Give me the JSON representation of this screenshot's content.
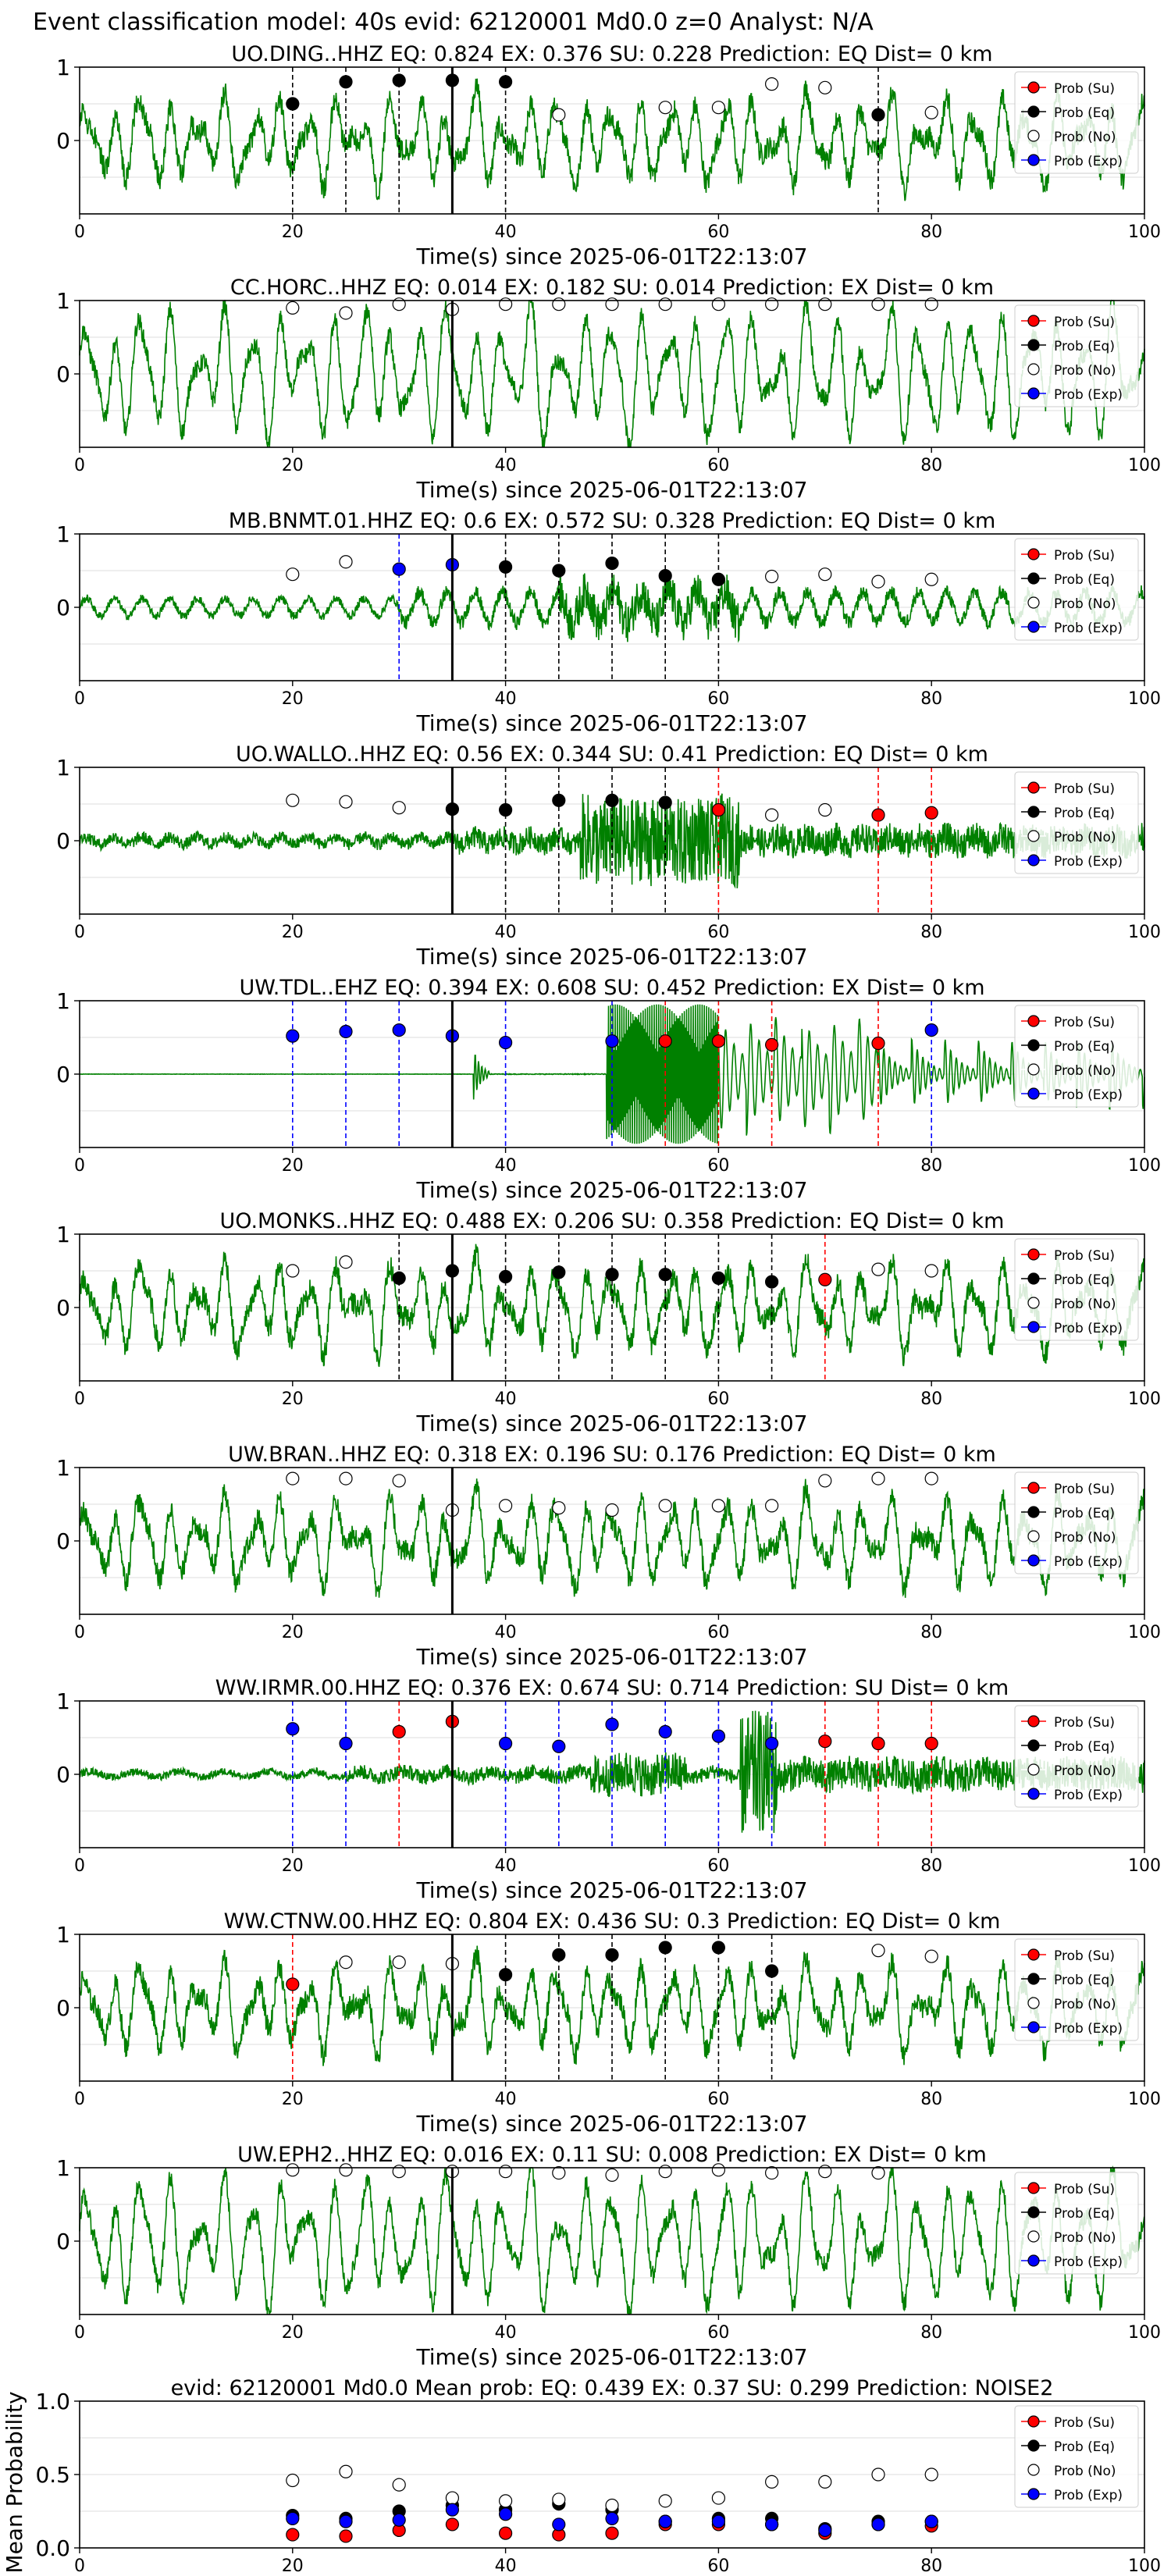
{
  "figure_title": "Event classification model: 40s evid: 62120001 Md0.0 z=0 Analyst: N/A",
  "legend_labels": [
    "Prob (Su)",
    "Prob (Eq)",
    "Prob (No)",
    "Prob (Exp)"
  ],
  "colors": {
    "trace": "#008000",
    "su": "#ff0000",
    "eq": "#000000",
    "no": "#ffffff",
    "ex": "#0000ff",
    "event_line": "#000000"
  },
  "chart_data": [
    {
      "type": "line",
      "title": "UO.DING..HHZ   EQ: 0.824  EX: 0.376  SU: 0.228   Prediction: EQ    Dist= 0 km",
      "xlabel": "Time(s) since 2025-06-01T22:13:07",
      "xlim": [
        0,
        100
      ],
      "ylim": [
        -1,
        1
      ],
      "xticks": [
        "0",
        "20",
        "40",
        "60",
        "80",
        "100"
      ],
      "yticks": [
        "1",
        "0"
      ],
      "event_line_x": 35,
      "trace_style": "mid",
      "windows": [
        {
          "x": 20,
          "class": "eq",
          "p": 0.5
        },
        {
          "x": 25,
          "class": "eq",
          "p": 0.8
        },
        {
          "x": 30,
          "class": "eq",
          "p": 0.82
        },
        {
          "x": 35,
          "class": "eq",
          "p": 0.82
        },
        {
          "x": 40,
          "class": "eq",
          "p": 0.8
        },
        {
          "x": 45,
          "class": "no",
          "p": 0.35
        },
        {
          "x": 55,
          "class": "no",
          "p": 0.45
        },
        {
          "x": 60,
          "class": "no",
          "p": 0.45
        },
        {
          "x": 65,
          "class": "no",
          "p": 0.77
        },
        {
          "x": 70,
          "class": "no",
          "p": 0.72
        },
        {
          "x": 75,
          "class": "eq",
          "p": 0.35
        },
        {
          "x": 80,
          "class": "no",
          "p": 0.38
        }
      ]
    },
    {
      "type": "line",
      "title": "CC.HORC..HHZ   EQ: 0.014  EX: 0.182  SU: 0.014   Prediction: EX    Dist= 0 km",
      "xlabel": "Time(s) since 2025-06-01T22:13:07",
      "xlim": [
        0,
        100
      ],
      "ylim": [
        -1,
        1
      ],
      "xticks": [
        "0",
        "20",
        "40",
        "60",
        "80",
        "100"
      ],
      "yticks": [
        "1",
        "0"
      ],
      "event_line_x": 35,
      "trace_style": "full",
      "windows": [
        {
          "x": 20,
          "class": "no",
          "p": 0.9
        },
        {
          "x": 25,
          "class": "no",
          "p": 0.83
        },
        {
          "x": 30,
          "class": "no",
          "p": 0.95
        },
        {
          "x": 35,
          "class": "no",
          "p": 0.88
        },
        {
          "x": 40,
          "class": "no",
          "p": 0.95
        },
        {
          "x": 45,
          "class": "no",
          "p": 0.95
        },
        {
          "x": 50,
          "class": "no",
          "p": 0.95
        },
        {
          "x": 55,
          "class": "no",
          "p": 0.95
        },
        {
          "x": 60,
          "class": "no",
          "p": 0.95
        },
        {
          "x": 65,
          "class": "no",
          "p": 0.95
        },
        {
          "x": 70,
          "class": "no",
          "p": 0.95
        },
        {
          "x": 75,
          "class": "no",
          "p": 0.95
        },
        {
          "x": 80,
          "class": "no",
          "p": 0.95
        }
      ]
    },
    {
      "type": "line",
      "title": "MB.BNMT.01.HHZ   EQ: 0.6  EX: 0.572  SU: 0.328   Prediction: EQ    Dist= 0 km",
      "xlabel": "Time(s) since 2025-06-01T22:13:07",
      "xlim": [
        0,
        100
      ],
      "ylim": [
        -1,
        1
      ],
      "xticks": [
        "0",
        "20",
        "40",
        "60",
        "80",
        "100"
      ],
      "yticks": [
        "1",
        "0"
      ],
      "event_line_x": 35,
      "trace_style": "low",
      "windows": [
        {
          "x": 20,
          "class": "no",
          "p": 0.45
        },
        {
          "x": 25,
          "class": "no",
          "p": 0.62
        },
        {
          "x": 30,
          "class": "ex",
          "p": 0.52
        },
        {
          "x": 35,
          "class": "ex",
          "p": 0.58
        },
        {
          "x": 40,
          "class": "eq",
          "p": 0.55
        },
        {
          "x": 45,
          "class": "eq",
          "p": 0.5
        },
        {
          "x": 50,
          "class": "eq",
          "p": 0.6
        },
        {
          "x": 55,
          "class": "eq",
          "p": 0.43
        },
        {
          "x": 60,
          "class": "eq",
          "p": 0.38
        },
        {
          "x": 65,
          "class": "no",
          "p": 0.42
        },
        {
          "x": 70,
          "class": "no",
          "p": 0.45
        },
        {
          "x": 75,
          "class": "no",
          "p": 0.35
        },
        {
          "x": 80,
          "class": "no",
          "p": 0.38
        }
      ]
    },
    {
      "type": "line",
      "title": "UO.WALLO..HHZ   EQ: 0.56  EX: 0.344  SU: 0.41   Prediction: EQ    Dist= 0 km",
      "xlabel": "Time(s) since 2025-06-01T22:13:07",
      "xlim": [
        0,
        100
      ],
      "ylim": [
        -1,
        1
      ],
      "xticks": [
        "0",
        "20",
        "40",
        "60",
        "80",
        "100"
      ],
      "yticks": [
        "1",
        "0"
      ],
      "event_line_x": 35,
      "trace_style": "burst",
      "windows": [
        {
          "x": 20,
          "class": "no",
          "p": 0.55
        },
        {
          "x": 25,
          "class": "no",
          "p": 0.53
        },
        {
          "x": 30,
          "class": "no",
          "p": 0.45
        },
        {
          "x": 35,
          "class": "eq",
          "p": 0.43
        },
        {
          "x": 40,
          "class": "eq",
          "p": 0.42
        },
        {
          "x": 45,
          "class": "eq",
          "p": 0.55
        },
        {
          "x": 50,
          "class": "eq",
          "p": 0.55
        },
        {
          "x": 55,
          "class": "eq",
          "p": 0.52
        },
        {
          "x": 60,
          "class": "su",
          "p": 0.42
        },
        {
          "x": 65,
          "class": "no",
          "p": 0.35
        },
        {
          "x": 70,
          "class": "no",
          "p": 0.42
        },
        {
          "x": 75,
          "class": "su",
          "p": 0.35
        },
        {
          "x": 80,
          "class": "su",
          "p": 0.38
        }
      ]
    },
    {
      "type": "line",
      "title": "UW.TDL..EHZ   EQ: 0.394  EX: 0.608  SU: 0.452   Prediction: EX    Dist= 0 km",
      "xlabel": "Time(s) since 2025-06-01T22:13:07",
      "xlim": [
        0,
        100
      ],
      "ylim": [
        -1,
        1
      ],
      "xticks": [
        "0",
        "20",
        "40",
        "60",
        "80",
        "100"
      ],
      "yticks": [
        "1",
        "0"
      ],
      "event_line_x": 35,
      "trace_style": "tdl",
      "windows": [
        {
          "x": 20,
          "class": "ex",
          "p": 0.52
        },
        {
          "x": 25,
          "class": "ex",
          "p": 0.58
        },
        {
          "x": 30,
          "class": "ex",
          "p": 0.6
        },
        {
          "x": 35,
          "class": "ex",
          "p": 0.52
        },
        {
          "x": 40,
          "class": "ex",
          "p": 0.43
        },
        {
          "x": 50,
          "class": "ex",
          "p": 0.45
        },
        {
          "x": 55,
          "class": "su",
          "p": 0.45
        },
        {
          "x": 60,
          "class": "su",
          "p": 0.45
        },
        {
          "x": 65,
          "class": "su",
          "p": 0.4
        },
        {
          "x": 75,
          "class": "su",
          "p": 0.42
        },
        {
          "x": 80,
          "class": "ex",
          "p": 0.6
        }
      ]
    },
    {
      "type": "line",
      "title": "UO.MONKS..HHZ   EQ: 0.488  EX: 0.206  SU: 0.358   Prediction: EQ    Dist= 0 km",
      "xlabel": "Time(s) since 2025-06-01T22:13:07",
      "xlim": [
        0,
        100
      ],
      "ylim": [
        -1,
        1
      ],
      "xticks": [
        "0",
        "20",
        "40",
        "60",
        "80",
        "100"
      ],
      "yticks": [
        "1",
        "0"
      ],
      "event_line_x": 35,
      "trace_style": "mid",
      "windows": [
        {
          "x": 20,
          "class": "no",
          "p": 0.5
        },
        {
          "x": 25,
          "class": "no",
          "p": 0.62
        },
        {
          "x": 30,
          "class": "eq",
          "p": 0.4
        },
        {
          "x": 35,
          "class": "eq",
          "p": 0.5
        },
        {
          "x": 40,
          "class": "eq",
          "p": 0.42
        },
        {
          "x": 45,
          "class": "eq",
          "p": 0.48
        },
        {
          "x": 50,
          "class": "eq",
          "p": 0.45
        },
        {
          "x": 55,
          "class": "eq",
          "p": 0.45
        },
        {
          "x": 60,
          "class": "eq",
          "p": 0.4
        },
        {
          "x": 65,
          "class": "eq",
          "p": 0.35
        },
        {
          "x": 70,
          "class": "su",
          "p": 0.38
        },
        {
          "x": 75,
          "class": "no",
          "p": 0.52
        },
        {
          "x": 80,
          "class": "no",
          "p": 0.5
        }
      ]
    },
    {
      "type": "line",
      "title": "UW.BRAN..HHZ   EQ: 0.318  EX: 0.196  SU: 0.176   Prediction: EQ    Dist= 0 km",
      "xlabel": "Time(s) since 2025-06-01T22:13:07",
      "xlim": [
        0,
        100
      ],
      "ylim": [
        -1,
        1
      ],
      "xticks": [
        "0",
        "20",
        "40",
        "60",
        "80",
        "100"
      ],
      "yticks": [
        "1",
        "0"
      ],
      "event_line_x": 35,
      "trace_style": "mid",
      "windows": [
        {
          "x": 20,
          "class": "no",
          "p": 0.85
        },
        {
          "x": 25,
          "class": "no",
          "p": 0.85
        },
        {
          "x": 30,
          "class": "no",
          "p": 0.82
        },
        {
          "x": 35,
          "class": "no",
          "p": 0.42
        },
        {
          "x": 40,
          "class": "no",
          "p": 0.48
        },
        {
          "x": 45,
          "class": "no",
          "p": 0.45
        },
        {
          "x": 50,
          "class": "no",
          "p": 0.42
        },
        {
          "x": 55,
          "class": "no",
          "p": 0.48
        },
        {
          "x": 60,
          "class": "no",
          "p": 0.48
        },
        {
          "x": 65,
          "class": "no",
          "p": 0.48
        },
        {
          "x": 70,
          "class": "no",
          "p": 0.82
        },
        {
          "x": 75,
          "class": "no",
          "p": 0.85
        },
        {
          "x": 80,
          "class": "no",
          "p": 0.85
        }
      ]
    },
    {
      "type": "line",
      "title": "WW.IRMR.00.HHZ   EQ: 0.376  EX: 0.674  SU: 0.714   Prediction: SU    Dist= 0 km",
      "xlabel": "Time(s) since 2025-06-01T22:13:07",
      "xlim": [
        0,
        100
      ],
      "ylim": [
        -1,
        1
      ],
      "xticks": [
        "0",
        "20",
        "40",
        "60",
        "80",
        "100"
      ],
      "yticks": [
        "1",
        "0"
      ],
      "event_line_x": 35,
      "trace_style": "irmr",
      "windows": [
        {
          "x": 20,
          "class": "ex",
          "p": 0.62
        },
        {
          "x": 25,
          "class": "ex",
          "p": 0.42
        },
        {
          "x": 30,
          "class": "su",
          "p": 0.58
        },
        {
          "x": 35,
          "class": "su",
          "p": 0.72
        },
        {
          "x": 40,
          "class": "ex",
          "p": 0.42
        },
        {
          "x": 45,
          "class": "ex",
          "p": 0.38
        },
        {
          "x": 50,
          "class": "ex",
          "p": 0.68
        },
        {
          "x": 55,
          "class": "ex",
          "p": 0.58
        },
        {
          "x": 60,
          "class": "ex",
          "p": 0.52
        },
        {
          "x": 65,
          "class": "ex",
          "p": 0.42
        },
        {
          "x": 70,
          "class": "su",
          "p": 0.45
        },
        {
          "x": 75,
          "class": "su",
          "p": 0.42
        },
        {
          "x": 80,
          "class": "su",
          "p": 0.42
        }
      ]
    },
    {
      "type": "line",
      "title": "WW.CTNW.00.HHZ   EQ: 0.804  EX: 0.436  SU: 0.3   Prediction: EQ    Dist= 0 km",
      "xlabel": "Time(s) since 2025-06-01T22:13:07",
      "xlim": [
        0,
        100
      ],
      "ylim": [
        -1,
        1
      ],
      "xticks": [
        "0",
        "20",
        "40",
        "60",
        "80",
        "100"
      ],
      "yticks": [
        "1",
        "0"
      ],
      "event_line_x": 35,
      "trace_style": "mid",
      "windows": [
        {
          "x": 20,
          "class": "su",
          "p": 0.32
        },
        {
          "x": 25,
          "class": "no",
          "p": 0.62
        },
        {
          "x": 30,
          "class": "no",
          "p": 0.62
        },
        {
          "x": 35,
          "class": "no",
          "p": 0.6
        },
        {
          "x": 40,
          "class": "eq",
          "p": 0.45
        },
        {
          "x": 45,
          "class": "eq",
          "p": 0.72
        },
        {
          "x": 50,
          "class": "eq",
          "p": 0.72
        },
        {
          "x": 55,
          "class": "eq",
          "p": 0.82
        },
        {
          "x": 60,
          "class": "eq",
          "p": 0.82
        },
        {
          "x": 65,
          "class": "eq",
          "p": 0.5
        },
        {
          "x": 75,
          "class": "no",
          "p": 0.78
        },
        {
          "x": 80,
          "class": "no",
          "p": 0.7
        }
      ]
    },
    {
      "type": "line",
      "title": "UW.EPH2..HHZ   EQ: 0.016  EX: 0.11  SU: 0.008   Prediction: EX    Dist= 0 km",
      "xlabel": "Time(s) since 2025-06-01T22:13:07",
      "xlim": [
        0,
        100
      ],
      "ylim": [
        -1,
        1
      ],
      "xticks": [
        "0",
        "20",
        "40",
        "60",
        "80",
        "100"
      ],
      "yticks": [
        "1",
        "0"
      ],
      "event_line_x": 35,
      "trace_style": "full",
      "windows": [
        {
          "x": 20,
          "class": "no",
          "p": 0.97
        },
        {
          "x": 25,
          "class": "no",
          "p": 0.97
        },
        {
          "x": 30,
          "class": "no",
          "p": 0.95
        },
        {
          "x": 35,
          "class": "no",
          "p": 0.95
        },
        {
          "x": 40,
          "class": "no",
          "p": 0.95
        },
        {
          "x": 45,
          "class": "no",
          "p": 0.93
        },
        {
          "x": 50,
          "class": "no",
          "p": 0.9
        },
        {
          "x": 55,
          "class": "no",
          "p": 0.95
        },
        {
          "x": 60,
          "class": "no",
          "p": 0.97
        },
        {
          "x": 65,
          "class": "no",
          "p": 0.93
        },
        {
          "x": 70,
          "class": "no",
          "p": 0.95
        },
        {
          "x": 75,
          "class": "no",
          "p": 0.93
        }
      ]
    },
    {
      "type": "scatter",
      "title": "evid: 62120001  Md0.0   Mean prob:   EQ: 0.439  EX: 0.37  SU: 0.299   Prediction: NOISE2",
      "ylabel": "Mean Probability",
      "xlim": [
        0,
        100
      ],
      "ylim": [
        0,
        1
      ],
      "xticks": [
        "0",
        "20",
        "40",
        "60",
        "80",
        "100"
      ],
      "yticks": [
        "0.0",
        "0.5",
        "1.0"
      ],
      "x": [
        20,
        25,
        30,
        35,
        40,
        45,
        50,
        55,
        60,
        65,
        70,
        75,
        80
      ],
      "series": [
        {
          "name": "Prob (Su)",
          "key": "su",
          "values": [
            0.09,
            0.08,
            0.12,
            0.16,
            0.1,
            0.09,
            0.1,
            0.16,
            0.16,
            0.16,
            0.1,
            0.16,
            0.15
          ]
        },
        {
          "name": "Prob (Eq)",
          "key": "eq",
          "values": [
            0.22,
            0.2,
            0.25,
            0.29,
            0.26,
            0.3,
            0.26,
            0.18,
            0.2,
            0.2,
            0.13,
            0.18,
            0.18
          ]
        },
        {
          "name": "Prob (No)",
          "key": "no",
          "values": [
            0.46,
            0.52,
            0.43,
            0.34,
            0.32,
            0.33,
            0.29,
            0.32,
            0.34,
            0.45,
            0.45,
            0.5,
            0.5
          ]
        },
        {
          "name": "Prob (Exp)",
          "key": "ex",
          "values": [
            0.2,
            0.18,
            0.19,
            0.26,
            0.23,
            0.16,
            0.2,
            0.18,
            0.18,
            0.16,
            0.12,
            0.16,
            0.18
          ]
        }
      ]
    }
  ]
}
